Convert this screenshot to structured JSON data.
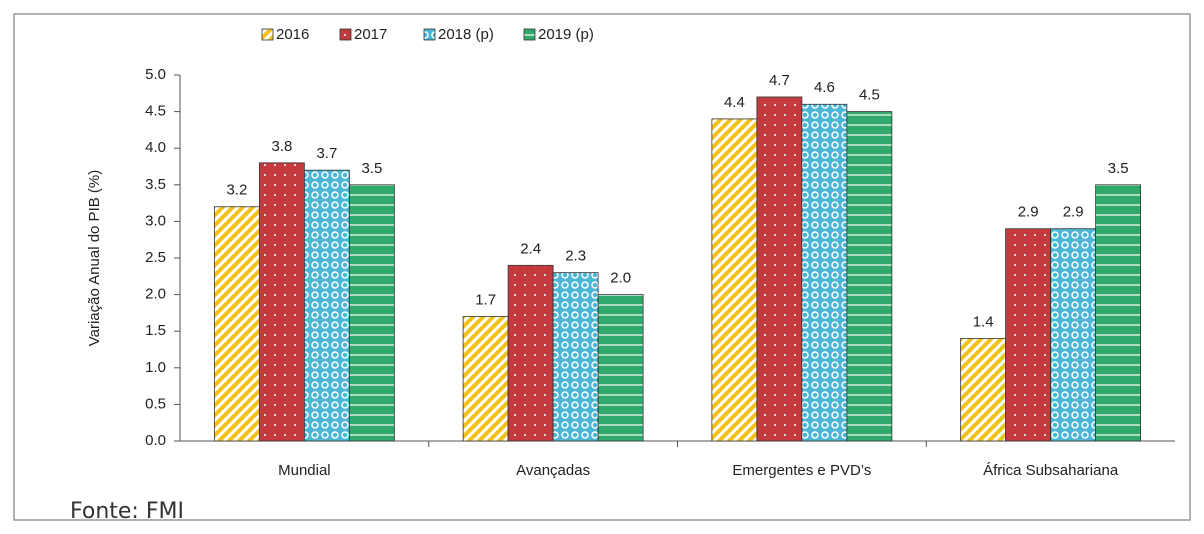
{
  "chart_data": {
    "type": "bar",
    "y_axis_label": "Variação Anual do PIB (%)",
    "source": "Fonte: FMI",
    "categories": [
      "Mundial",
      "Avançadas",
      "Emergentes e PVD’s",
      "África Subsahariana"
    ],
    "series": [
      {
        "name": "2016",
        "color": "#f2c21b",
        "values": [
          3.2,
          1.7,
          4.4,
          1.4
        ],
        "value_labels": [
          "3.2",
          "1.7",
          "4.4",
          "1.4"
        ]
      },
      {
        "name": "2017",
        "color": "#c33b3d",
        "values": [
          3.8,
          2.4,
          4.7,
          2.9
        ],
        "value_labels": [
          "3.8",
          "2.4",
          "4.7",
          "2.9"
        ]
      },
      {
        "name": "2018 (p)",
        "color": "#4bb6d6",
        "values": [
          3.7,
          2.3,
          4.6,
          2.9
        ],
        "value_labels": [
          "3.7",
          "2.3",
          "4.6",
          "2.9"
        ]
      },
      {
        "name": "2019 (p)",
        "color": "#2fa96c",
        "values": [
          3.5,
          2.0,
          4.5,
          3.5
        ],
        "value_labels": [
          "3.5",
          "2.0",
          "4.5",
          "3.5"
        ]
      }
    ],
    "ylim": [
      0,
      5
    ],
    "yticks": [
      {
        "value": 0,
        "label": "0.0"
      },
      {
        "value": 0.5,
        "label": "0.5"
      },
      {
        "value": 1,
        "label": "1.0"
      },
      {
        "value": 1.5,
        "label": "1.5"
      },
      {
        "value": 2,
        "label": "2.0"
      },
      {
        "value": 2.5,
        "label": "2.5"
      },
      {
        "value": 3,
        "label": "3.0"
      },
      {
        "value": 3.5,
        "label": "3.5"
      },
      {
        "value": 4,
        "label": "4.0"
      },
      {
        "value": 4.5,
        "label": "4.5"
      },
      {
        "value": 5,
        "label": "5.0"
      }
    ],
    "legend": "top"
  }
}
